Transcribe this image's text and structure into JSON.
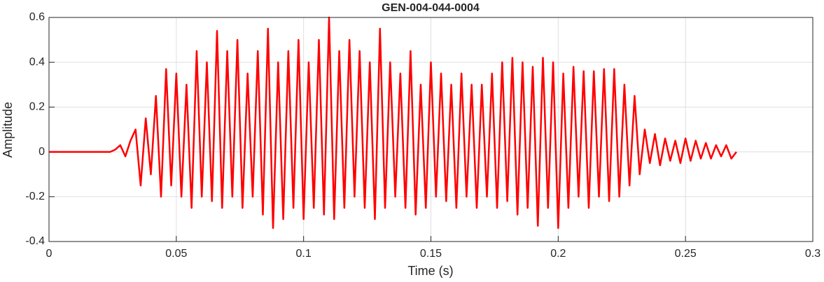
{
  "chart_data": {
    "type": "line",
    "title": "GEN-004-044-0004",
    "xlabel": "Time (s)",
    "ylabel": "Amplitude",
    "color": "#ff0000",
    "grid": true,
    "xlim": [
      0,
      0.3
    ],
    "xticks": [
      0,
      0.05,
      0.1,
      0.15,
      0.2,
      0.25,
      0.3
    ],
    "ylim": [
      -0.4,
      0.6
    ],
    "yticks": [
      -0.4,
      -0.2,
      0,
      0.2,
      0.4,
      0.6
    ],
    "x": [
      0,
      0.002,
      0.004,
      0.006,
      0.008,
      0.01,
      0.012,
      0.014,
      0.016,
      0.018,
      0.02,
      0.022,
      0.024,
      0.026,
      0.028,
      0.03,
      0.032,
      0.034,
      0.036,
      0.038,
      0.04,
      0.042,
      0.044,
      0.046,
      0.048,
      0.05,
      0.052,
      0.054,
      0.056,
      0.058,
      0.06,
      0.062,
      0.064,
      0.066,
      0.068,
      0.07,
      0.072,
      0.074,
      0.076,
      0.078,
      0.08,
      0.082,
      0.084,
      0.086,
      0.088,
      0.09,
      0.092,
      0.094,
      0.096,
      0.098,
      0.1,
      0.102,
      0.104,
      0.106,
      0.108,
      0.11,
      0.112,
      0.114,
      0.116,
      0.118,
      0.12,
      0.122,
      0.124,
      0.126,
      0.128,
      0.13,
      0.132,
      0.134,
      0.136,
      0.138,
      0.14,
      0.142,
      0.144,
      0.146,
      0.148,
      0.15,
      0.152,
      0.154,
      0.156,
      0.158,
      0.16,
      0.162,
      0.164,
      0.166,
      0.168,
      0.17,
      0.172,
      0.174,
      0.176,
      0.178,
      0.18,
      0.182,
      0.184,
      0.186,
      0.188,
      0.19,
      0.192,
      0.194,
      0.196,
      0.198,
      0.2,
      0.202,
      0.204,
      0.206,
      0.208,
      0.21,
      0.212,
      0.214,
      0.216,
      0.218,
      0.22,
      0.222,
      0.224,
      0.226,
      0.228,
      0.23,
      0.232,
      0.234,
      0.236,
      0.238,
      0.24,
      0.242,
      0.244,
      0.246,
      0.248,
      0.25,
      0.252,
      0.254,
      0.256,
      0.258,
      0.26,
      0.262,
      0.264,
      0.266,
      0.268,
      0.27
    ],
    "values": [
      0,
      0,
      0,
      0,
      0,
      0,
      0,
      0,
      0,
      0,
      0,
      0,
      0,
      0.01,
      0.03,
      -0.02,
      0.05,
      0.1,
      -0.15,
      0.15,
      -0.1,
      0.25,
      -0.2,
      0.37,
      -0.15,
      0.35,
      -0.2,
      0.3,
      -0.25,
      0.45,
      -0.2,
      0.4,
      -0.22,
      0.54,
      -0.25,
      0.45,
      -0.2,
      0.5,
      -0.25,
      0.35,
      -0.2,
      0.45,
      -0.28,
      0.55,
      -0.34,
      0.4,
      -0.3,
      0.45,
      -0.25,
      0.5,
      -0.3,
      0.4,
      -0.25,
      0.5,
      -0.28,
      0.6,
      -0.3,
      0.45,
      -0.25,
      0.5,
      -0.2,
      0.45,
      -0.25,
      0.4,
      -0.3,
      0.55,
      -0.25,
      0.4,
      -0.2,
      0.35,
      -0.25,
      0.45,
      -0.28,
      0.3,
      -0.25,
      0.4,
      -0.2,
      0.35,
      -0.22,
      0.3,
      -0.25,
      0.35,
      -0.2,
      0.3,
      -0.25,
      0.3,
      -0.2,
      0.35,
      -0.25,
      0.4,
      -0.22,
      0.42,
      -0.28,
      0.4,
      -0.25,
      0.38,
      -0.33,
      0.42,
      -0.25,
      0.4,
      -0.34,
      0.35,
      -0.25,
      0.38,
      -0.2,
      0.36,
      -0.25,
      0.36,
      -0.2,
      0.37,
      -0.22,
      0.37,
      -0.2,
      0.3,
      -0.15,
      0.25,
      -0.1,
      0.1,
      -0.05,
      0.08,
      -0.06,
      0.06,
      -0.04,
      0.05,
      -0.05,
      0.06,
      -0.04,
      0.05,
      -0.03,
      0.04,
      -0.03,
      0.03,
      -0.02,
      0.03,
      -0.03,
      0
    ]
  }
}
